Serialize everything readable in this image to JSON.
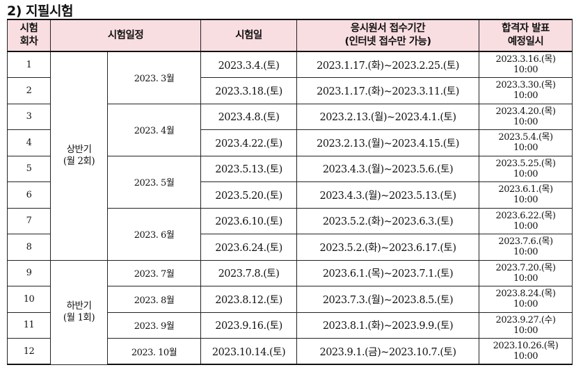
{
  "title": "2) 지필시험",
  "headers": {
    "round": [
      "시험",
      "회차"
    ],
    "schedule": "시험일정",
    "exam_date": "시험일",
    "accept": [
      "응시원서 접수기간",
      "(인터넷 접수만 가능)"
    ],
    "announce": [
      "합격자 발표",
      "예정일시"
    ]
  },
  "periods": [
    {
      "label": [
        "상반기",
        "(월 2회)"
      ]
    },
    {
      "label": [
        "하반기",
        "(월 1회)"
      ]
    }
  ],
  "months": [
    "2023. 3월",
    "2023. 4월",
    "2023. 5월",
    "2023. 6월",
    "2023. 7월",
    "2023. 8월",
    "2023. 9월",
    "2023. 10월"
  ],
  "rows": [
    {
      "round": "1",
      "date": "2023.3.4.(토)",
      "accept": "2023.1.17.(화)~2023.2.25.(토)",
      "announce_date": "2023.3.16.(목)",
      "announce_time": "10:00"
    },
    {
      "round": "2",
      "date": "2023.3.18.(토)",
      "accept": "2023.1.17.(화)~2023.3.11.(토)",
      "announce_date": "2023.3.30.(목)",
      "announce_time": "10:00"
    },
    {
      "round": "3",
      "date": "2023.4.8.(토)",
      "accept": "2023.2.13.(월)~2023.4.1.(토)",
      "announce_date": "2023.4.20.(목)",
      "announce_time": "10:00"
    },
    {
      "round": "4",
      "date": "2023.4.22.(토)",
      "accept": "2023.2.13.(월)~2023.4.15.(토)",
      "announce_date": "2023.5.4.(목)",
      "announce_time": "10:00"
    },
    {
      "round": "5",
      "date": "2023.5.13.(토)",
      "accept": "2023.4.3.(월)~2023.5.6.(토)",
      "announce_date": "2023.5.25.(목)",
      "announce_time": "10:00"
    },
    {
      "round": "6",
      "date": "2023.5.20.(토)",
      "accept": "2023.4.3.(월)~2023.5.13.(토)",
      "announce_date": "2023.6.1.(목)",
      "announce_time": "10:00"
    },
    {
      "round": "7",
      "date": "2023.6.10.(토)",
      "accept": "2023.5.2.(화)~2023.6.3.(토)",
      "announce_date": "2023.6.22.(목)",
      "announce_time": "10:00"
    },
    {
      "round": "8",
      "date": "2023.6.24.(토)",
      "accept": "2023.5.2.(화)~2023.6.17.(토)",
      "announce_date": "2023.7.6.(목)",
      "announce_time": "10:00"
    },
    {
      "round": "9",
      "date": "2023.7.8.(토)",
      "accept": "2023.6.1.(목)~2023.7.1.(토)",
      "announce_date": "2023.7.20.(목)",
      "announce_time": "10:00"
    },
    {
      "round": "10",
      "date": "2023.8.12.(토)",
      "accept": "2023.7.3.(월)~2023.8.5.(토)",
      "announce_date": "2023.8.24.(목)",
      "announce_time": "10:00"
    },
    {
      "round": "11",
      "date": "2023.9.16.(토)",
      "accept": "2023.8.1.(화)~2023.9.9.(토)",
      "announce_date": "2023.9.27.(수)",
      "announce_time": "10:00"
    },
    {
      "round": "12",
      "date": "2023.10.14.(토)",
      "accept": "2023.9.1.(금)~2023.10.7.(토)",
      "announce_date": "2023.10.26.(목)",
      "announce_time": "10:00"
    }
  ]
}
